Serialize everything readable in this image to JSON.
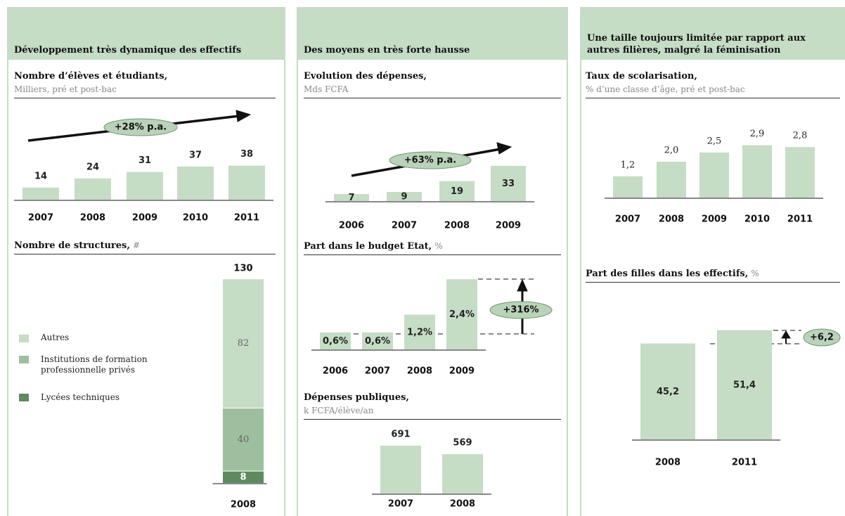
{
  "panels": [
    {
      "header": "Développement très dynamique des effectifs"
    },
    {
      "header": "Des moyens en très forte hausse"
    },
    {
      "header": "Une taille toujours limitée par rapport aux autres filières, malgré la féminisation"
    }
  ],
  "chart_data": [
    {
      "type": "bar",
      "title": "Nombre d’élèves et étudiants,",
      "subtitle": "Milliers, pré et post-bac",
      "categories": [
        "2007",
        "2008",
        "2009",
        "2010",
        "2011"
      ],
      "values": [
        14,
        24,
        31,
        37,
        38
      ],
      "annotation": "+28% p.a.",
      "color": "#c5dcc5"
    },
    {
      "type": "stacked_bar",
      "title": "Nombre de structures,",
      "unit": "#",
      "categories": [
        "2008"
      ],
      "series": [
        {
          "name": "Lycées techniques",
          "color": "#5f8a5f",
          "values": [
            8
          ]
        },
        {
          "name": "Institutions de formation professionnelle privés",
          "color": "#9dbf9d",
          "values": [
            40
          ]
        },
        {
          "name": "Autres",
          "color": "#c5dcc5",
          "values": [
            82
          ]
        }
      ],
      "total": [
        130
      ]
    },
    {
      "type": "bar",
      "title": "Evolution des dépenses,",
      "subtitle": "Mds FCFA",
      "categories": [
        "2006",
        "2007",
        "2008",
        "2009"
      ],
      "values": [
        7,
        9,
        19,
        33
      ],
      "annotation": "+63% p.a.",
      "color": "#c5dcc5"
    },
    {
      "type": "bar",
      "title": "Part dans le budget Etat,",
      "unit": "%",
      "categories": [
        "2006",
        "2007",
        "2008",
        "2009"
      ],
      "values": [
        0.6,
        0.6,
        1.2,
        2.4
      ],
      "value_labels": [
        "0,6%",
        "0,6%",
        "1,2%",
        "2,4%"
      ],
      "annotation": "+316%",
      "color": "#c5dcc5"
    },
    {
      "type": "bar",
      "title": "Dépenses publiques,",
      "subtitle": "k FCFA/élève/an",
      "categories": [
        "2007",
        "2008"
      ],
      "values": [
        691,
        569
      ],
      "color": "#c5dcc5"
    },
    {
      "type": "bar",
      "title": "Taux de scolarisation,",
      "subtitle": "% d’une classe d’âge, pré et post-bac",
      "categories": [
        "2007",
        "2008",
        "2009",
        "2010",
        "2011"
      ],
      "values": [
        1.2,
        2.0,
        2.5,
        2.9,
        2.8
      ],
      "value_labels": [
        "1,2",
        "2,0",
        "2,5",
        "2,9",
        "2,8"
      ],
      "color": "#c5dcc5"
    },
    {
      "type": "bar",
      "title": "Part des filles dans les effectifs,",
      "unit": "%",
      "categories": [
        "2008",
        "2011"
      ],
      "values": [
        45.2,
        51.4
      ],
      "value_labels": [
        "45,2",
        "51,4"
      ],
      "annotation": "+6,2",
      "color": "#c5dcc5"
    }
  ]
}
